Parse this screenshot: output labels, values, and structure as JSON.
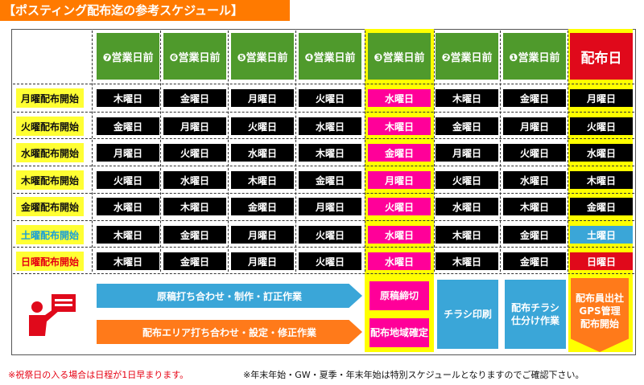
{
  "title": "【ポスティング配布迄の参考スケジュール】",
  "headers": [
    "❼営業日前",
    "❻営業日前",
    "❺営業日前",
    "❹営業日前",
    "❸営業日前",
    "❷営業日前",
    "❶営業日前",
    "配布日"
  ],
  "rows": [
    {
      "label": "月曜配布開始",
      "cells": [
        "木曜日",
        "金曜日",
        "月曜日",
        "火曜日",
        "水曜日",
        "木曜日",
        "金曜日",
        "月曜日"
      ]
    },
    {
      "label": "火曜配布開始",
      "cells": [
        "金曜日",
        "月曜日",
        "火曜日",
        "水曜日",
        "木曜日",
        "金曜日",
        "月曜日",
        "火曜日"
      ]
    },
    {
      "label": "水曜配布開始",
      "cells": [
        "月曜日",
        "火曜日",
        "水曜日",
        "木曜日",
        "金曜日",
        "月曜日",
        "火曜日",
        "水曜日"
      ]
    },
    {
      "label": "木曜配布開始",
      "cells": [
        "火曜日",
        "水曜日",
        "木曜日",
        "金曜日",
        "月曜日",
        "火曜日",
        "水曜日",
        "木曜日"
      ]
    },
    {
      "label": "金曜配布開始",
      "cells": [
        "水曜日",
        "木曜日",
        "金曜日",
        "月曜日",
        "火曜日",
        "水曜日",
        "木曜日",
        "金曜日"
      ]
    },
    {
      "label": "土曜配布開始",
      "cells": [
        "木曜日",
        "金曜日",
        "月曜日",
        "火曜日",
        "水曜日",
        "木曜日",
        "金曜日",
        "土曜日"
      ]
    },
    {
      "label": "日曜配布開始",
      "cells": [
        "木曜日",
        "金曜日",
        "月曜日",
        "火曜日",
        "水曜日",
        "木曜日",
        "金曜日",
        "日曜日"
      ]
    }
  ],
  "process": {
    "arrow_top": "原稿打ち合わせ・制作・訂正作業",
    "arrow_bottom": "配布エリア打ち合わせ・設定・修正作業",
    "step3_top": "原稿締切",
    "step3_bottom": "配布地域確定",
    "step2": "チラシ印刷",
    "step1": "配布チラシ\n仕分け作業",
    "day": "配布員出社\nGPS管理\n配布開始"
  },
  "icon": "person-posting-flyer-icon",
  "footnote_left": "※祝祭日の入る場合は日程が1日早まります。",
  "footnote_right": "※年末年始・GW・夏季・年末年始は特別スケジュールとなりますのでご確認下さい。",
  "colors": {
    "accent": "#ff7a00",
    "header_green": "#4f9a2c",
    "day_red": "#e0091b",
    "highlight": "#ffff00",
    "pink": "#ff0099",
    "blue": "#3aa6d8"
  }
}
